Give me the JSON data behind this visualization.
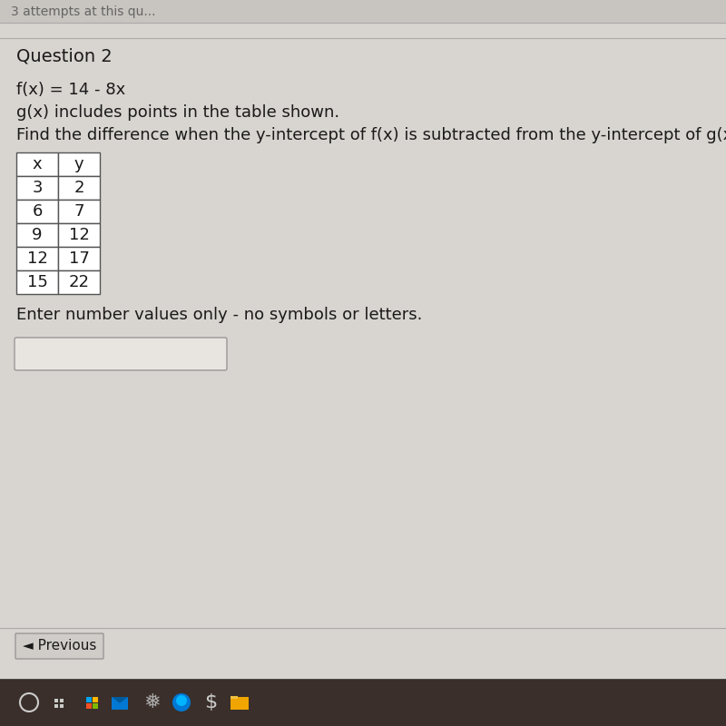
{
  "page_bg": "#d8d4cf",
  "top_bar_text": "3 attempts at this qu...",
  "section_label": "Question 2",
  "fx_label": "f(x) = 14 - 8x",
  "gx_label": "g(x) includes points in the table shown.",
  "question_text": "Find the difference when the y-intercept of f(x) is subtracted from the y-intercept of g(x",
  "table_headers": [
    "x",
    "y"
  ],
  "table_data": [
    [
      3,
      2
    ],
    [
      6,
      7
    ],
    [
      9,
      12
    ],
    [
      12,
      17
    ],
    [
      15,
      22
    ]
  ],
  "enter_label": "Enter number values only - no symbols or letters.",
  "previous_button": "◄ Previous",
  "taskbar_color": "#3a2f2a",
  "input_box_color": "#e8e4df",
  "grid_line_color": "#555555",
  "text_color": "#1a1a1a",
  "top_bar_color": "#c8c4bf",
  "separator_color": "#aaaaaa",
  "top_text_color": "#666666",
  "section_font_size": 14,
  "body_font_size": 13,
  "table_font_size": 13,
  "taskbar_icon_texts": [
    "○",
    "⊞",
    "",
    "▲",
    "✸",
    "●",
    "|",
    "■"
  ],
  "taskbar_icon_colors": [
    "#cccccc",
    "#cccccc",
    "#cccccc",
    "#3399ff",
    "#aaaaaa",
    "#1ba1e2",
    "#cccccc",
    "#f0a500"
  ]
}
